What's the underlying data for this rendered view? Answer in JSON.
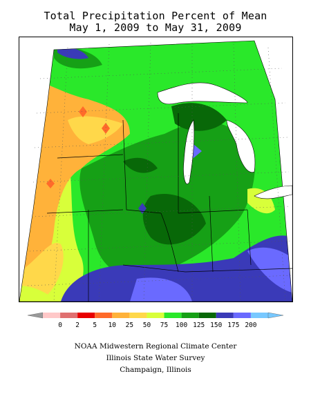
{
  "title": {
    "line1": "Total Precipitation Percent of Mean",
    "line2": "May 1, 2009 to May 31, 2009"
  },
  "legend": {
    "ticks": [
      "0",
      "2",
      "5",
      "10",
      "25",
      "50",
      "75",
      "100",
      "125",
      "150",
      "175",
      "200"
    ],
    "colors": [
      "#ffc8c8",
      "#e07070",
      "#e80000",
      "#ff6a2a",
      "#ffb23a",
      "#ffd84a",
      "#d8ff3a",
      "#2ae82a",
      "#16a016",
      "#086808",
      "#3a3ab8",
      "#6a6aff",
      "#78c8ff"
    ],
    "below_color": "#9a9a9a",
    "above_color": "#78c8ff"
  },
  "credits": {
    "line1": "NOAA Midwestern Regional Climate Center",
    "line2": "Illinois State Water Survey",
    "line3": "Champaign, Illinois"
  }
}
